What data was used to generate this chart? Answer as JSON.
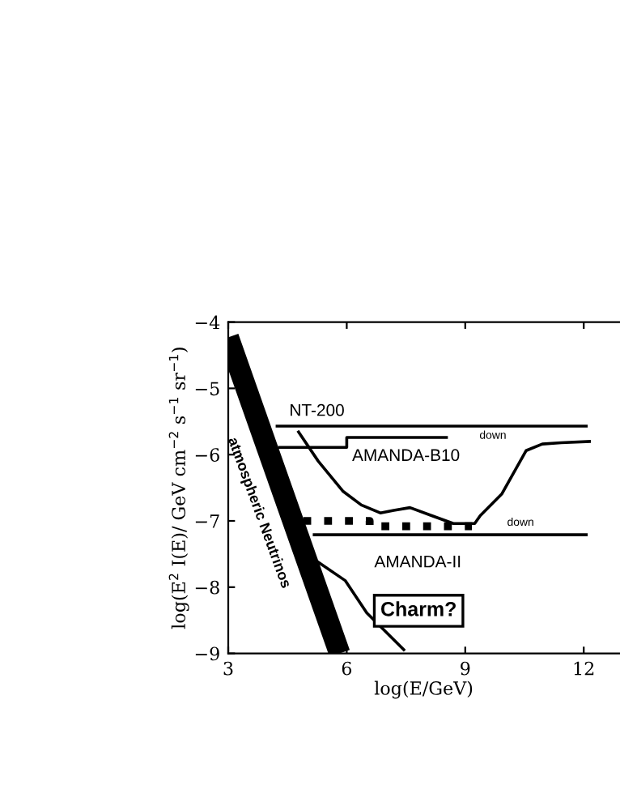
{
  "chart_data": {
    "type": "line",
    "xlabel": "log(E/GeV)",
    "ylabel": "log(E$^{2}$ I(E)/ GeV cm$^{−2}$ s$^{−1}$ sr$^{−1}$)",
    "xlim": [
      3,
      12.9
    ],
    "ylim": [
      -9,
      -4
    ],
    "xticks": [
      3,
      6,
      9,
      12
    ],
    "yticks": [
      -9,
      -8,
      -7,
      -6,
      -5,
      -4
    ],
    "grid": false,
    "legend": false,
    "series": [
      {
        "color": "#000000",
        "x": [
          3,
          5.82
        ],
        "values": [
          -4.23,
          -9
        ]
      },
      {
        "color": "#000000",
        "x": [
          4.2,
          12.1
        ],
        "values": [
          -5.57,
          -5.57
        ]
      },
      {
        "color": "#000000",
        "x": [
          4.26,
          6.0,
          6.0,
          8.56
        ],
        "values": [
          -5.89,
          -5.89,
          -5.74,
          -5.74
        ]
      },
      {
        "color": "#000000",
        "x": [
          4.76,
          5.28,
          5.9,
          6.37,
          6.85,
          7.19,
          7.6,
          8.15,
          8.7,
          9.24,
          9.38,
          9.93,
          10.54,
          10.95,
          11.43,
          12.18
        ],
        "values": [
          -5.64,
          -6.1,
          -6.55,
          -6.76,
          -6.88,
          -6.84,
          -6.8,
          -6.92,
          -7.04,
          -7.04,
          -6.92,
          -6.59,
          -5.94,
          -5.84,
          -5.82,
          -5.8
        ]
      },
      {
        "color": "#000000",
        "x": [
          5.14,
          12.1
        ],
        "values": [
          -7.21,
          -7.21
        ]
      },
      {
        "line_style": "dotted",
        "color": "#000000",
        "x": [
          4.9,
          6.58,
          6.58,
          9.17
        ],
        "values": [
          -7.0,
          -7.0,
          -7.08,
          -7.08
        ]
      },
      {
        "color": "#000000",
        "x": [
          5.22,
          5.96,
          6.51,
          7.47
        ],
        "values": [
          -7.6,
          -7.9,
          -8.39,
          -8.96
        ]
      }
    ],
    "annotations": [
      {
        "text": "NT-200",
        "x": 5.0,
        "y": -5.57
      },
      {
        "text": "down",
        "x": 9.7,
        "y": -5.57
      },
      {
        "text": "AMANDA-B10",
        "x": 7.5,
        "y": -5.74
      },
      {
        "text": "down",
        "x": 10.4,
        "y": -7.21
      },
      {
        "text": "AMANDA-II",
        "x": 7.8,
        "y": -7.21
      },
      {
        "text": "atmospheric Neutrinos",
        "x": 4.57,
        "y": -6.88
      },
      {
        "text": "Charm?",
        "x": 6.51,
        "y": -8.39
      }
    ]
  }
}
